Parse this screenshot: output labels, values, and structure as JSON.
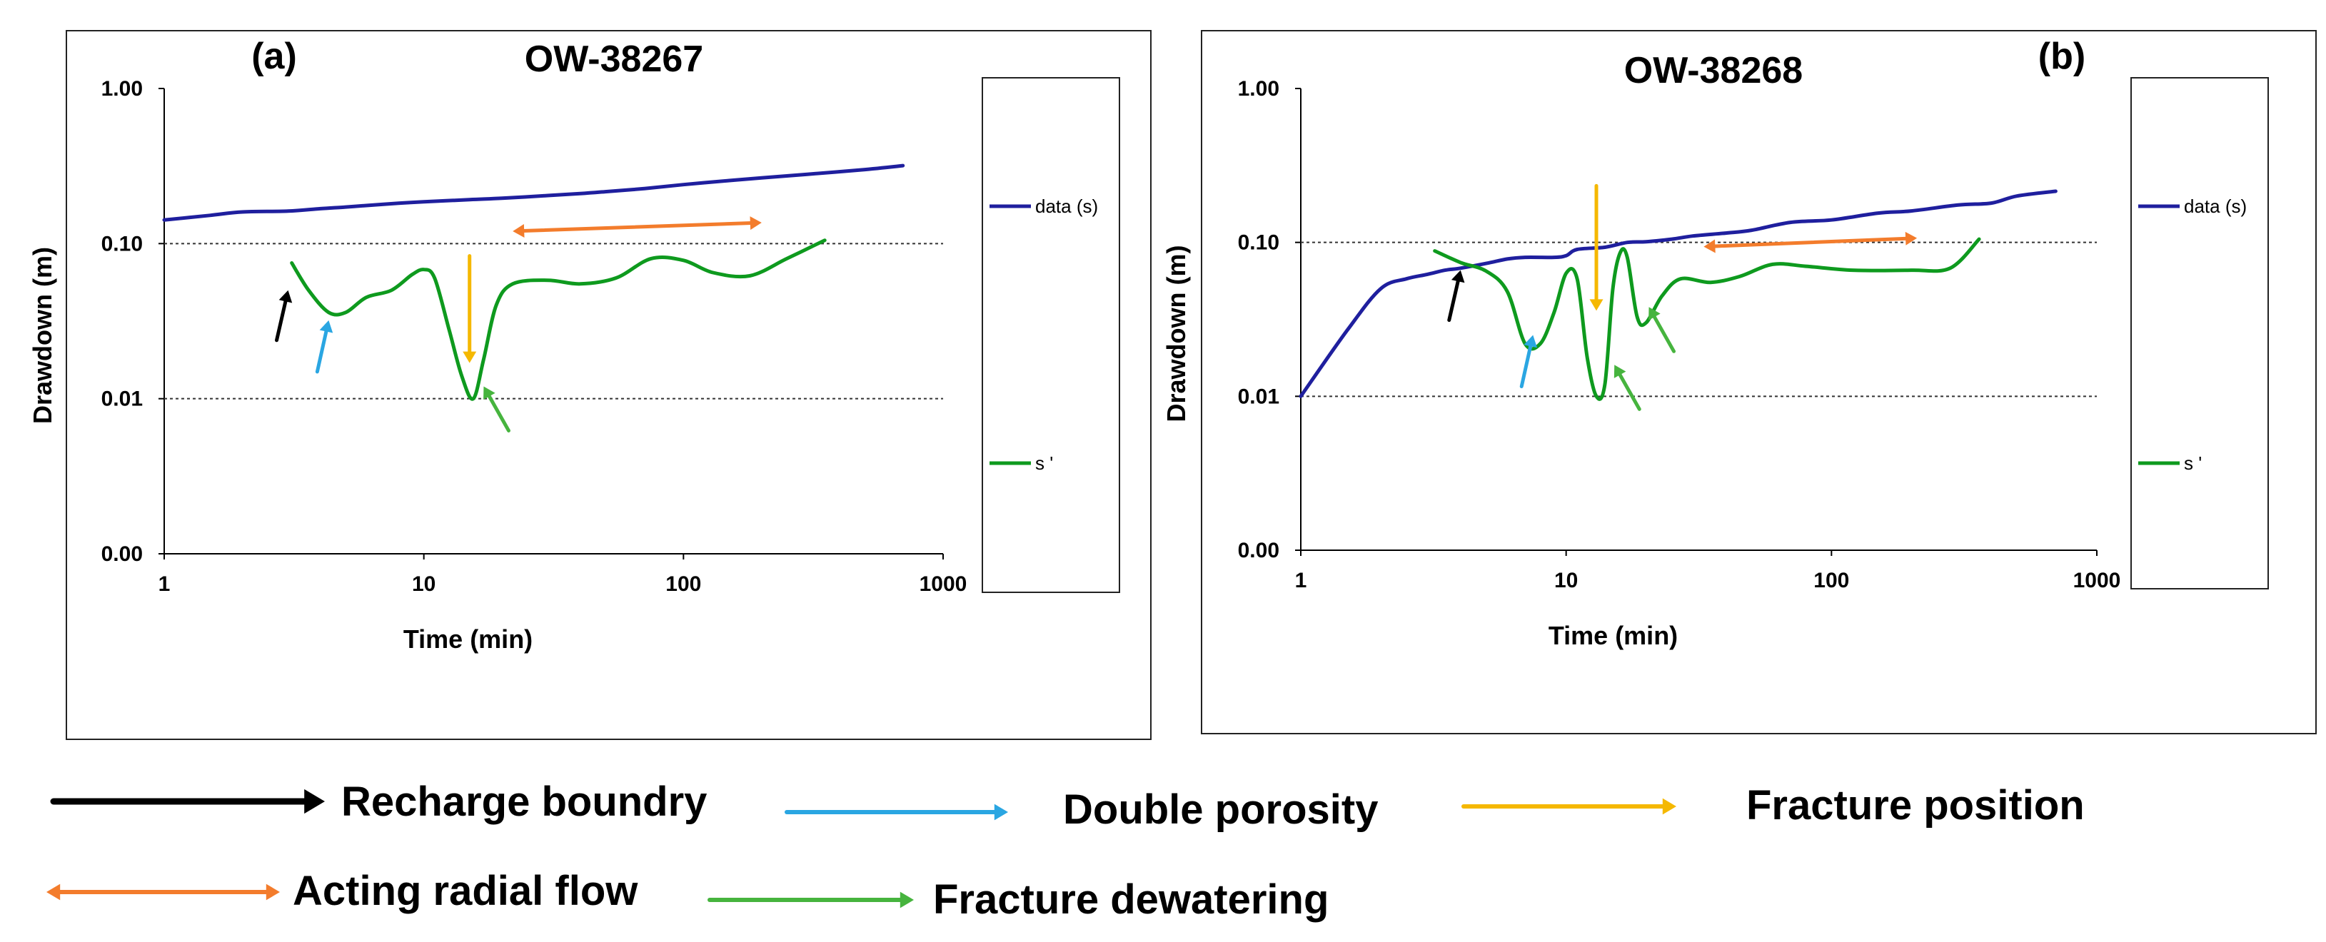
{
  "colors": {
    "data_s": "#1f1f9e",
    "s_prime": "#0e9a1e",
    "recharge": "#000000",
    "double_porosity": "#2aa6e2",
    "fracture_position": "#f5b800",
    "radial_flow": "#f37c2c",
    "fracture_dewatering": "#46b43e"
  },
  "chart_data": [
    {
      "type": "line",
      "panel": "(a)",
      "title": "OW-38267",
      "xlabel": "Time (min)",
      "ylabel": "Drawdown (m)",
      "xscale": "log",
      "xlim": [
        1,
        1000
      ],
      "y_ticks": [
        "1.00",
        "0.10",
        "0.01",
        "0.00"
      ],
      "x_ticks": [
        "1",
        "10",
        "100",
        "1000"
      ],
      "gridlines_at": [
        "0.10",
        "0.01"
      ],
      "legend_position": "right",
      "series": [
        {
          "name": "data (s)",
          "color_key": "data_s",
          "points": [
            [
              1,
              0.142
            ],
            [
              1.5,
              0.152
            ],
            [
              2,
              0.16
            ],
            [
              3,
              0.162
            ],
            [
              4,
              0.168
            ],
            [
              5,
              0.172
            ],
            [
              6,
              0.176
            ],
            [
              8,
              0.182
            ],
            [
              10,
              0.186
            ],
            [
              15,
              0.192
            ],
            [
              20,
              0.196
            ],
            [
              30,
              0.204
            ],
            [
              40,
              0.21
            ],
            [
              50,
              0.216
            ],
            [
              70,
              0.226
            ],
            [
              100,
              0.24
            ],
            [
              150,
              0.255
            ],
            [
              200,
              0.265
            ],
            [
              300,
              0.28
            ],
            [
              500,
              0.3
            ],
            [
              700,
              0.318
            ]
          ]
        },
        {
          "name": "s '",
          "color_key": "s_prime",
          "points": [
            [
              3.1,
              0.075
            ],
            [
              3.6,
              0.05
            ],
            [
              4.3,
              0.036
            ],
            [
              5,
              0.036
            ],
            [
              6,
              0.045
            ],
            [
              7.5,
              0.05
            ],
            [
              9,
              0.063
            ],
            [
              10,
              0.068
            ],
            [
              11,
              0.06
            ],
            [
              12.5,
              0.028
            ],
            [
              14,
              0.014
            ],
            [
              15.5,
              0.01
            ],
            [
              17,
              0.018
            ],
            [
              19,
              0.04
            ],
            [
              22,
              0.055
            ],
            [
              30,
              0.058
            ],
            [
              40,
              0.055
            ],
            [
              55,
              0.06
            ],
            [
              75,
              0.08
            ],
            [
              100,
              0.078
            ],
            [
              130,
              0.065
            ],
            [
              180,
              0.062
            ],
            [
              250,
              0.08
            ],
            [
              350,
              0.105
            ]
          ]
        }
      ],
      "annotations": [
        {
          "kind": "recharge",
          "at_time": 3.0,
          "at_drawdown": 0.05
        },
        {
          "kind": "double_porosity",
          "at_time": 4.3,
          "at_drawdown": 0.032
        },
        {
          "kind": "fracture_position",
          "at_time": 15.0,
          "at_drawdown": 0.017
        },
        {
          "kind": "fracture_dewatering",
          "at_time": 17.0,
          "at_drawdown": 0.012
        },
        {
          "kind": "radial_flow",
          "from_time": 22,
          "to_time": 200,
          "at_drawdown": 0.128
        }
      ]
    },
    {
      "type": "line",
      "panel": "(b)",
      "title": "OW-38268",
      "xlabel": "Time (min)",
      "ylabel": "Drawdown (m)",
      "xscale": "log",
      "xlim": [
        1,
        1000
      ],
      "y_ticks": [
        "1.00",
        "0.10",
        "0.01",
        "0.00"
      ],
      "x_ticks": [
        "1",
        "10",
        "100",
        "1000"
      ],
      "gridlines_at": [
        "0.10",
        "0.01"
      ],
      "legend_position": "right",
      "series": [
        {
          "name": "data (s)",
          "color_key": "data_s",
          "points": [
            [
              1,
              0.01
            ],
            [
              1.5,
              0.027
            ],
            [
              2,
              0.05
            ],
            [
              2.5,
              0.058
            ],
            [
              3,
              0.062
            ],
            [
              3.5,
              0.066
            ],
            [
              4,
              0.068
            ],
            [
              5,
              0.073
            ],
            [
              6,
              0.078
            ],
            [
              7,
              0.08
            ],
            [
              9,
              0.08
            ],
            [
              10,
              0.082
            ],
            [
              11,
              0.09
            ],
            [
              14,
              0.093
            ],
            [
              17,
              0.1
            ],
            [
              20,
              0.101
            ],
            [
              25,
              0.105
            ],
            [
              30,
              0.11
            ],
            [
              40,
              0.115
            ],
            [
              50,
              0.12
            ],
            [
              70,
              0.135
            ],
            [
              100,
              0.14
            ],
            [
              150,
              0.155
            ],
            [
              200,
              0.16
            ],
            [
              300,
              0.175
            ],
            [
              400,
              0.18
            ],
            [
              500,
              0.2
            ],
            [
              700,
              0.215
            ]
          ]
        },
        {
          "name": "s '",
          "color_key": "s_prime",
          "points": [
            [
              3.2,
              0.088
            ],
            [
              4,
              0.074
            ],
            [
              5,
              0.065
            ],
            [
              6,
              0.048
            ],
            [
              7,
              0.022
            ],
            [
              8,
              0.022
            ],
            [
              9,
              0.035
            ],
            [
              10,
              0.063
            ],
            [
              11,
              0.058
            ],
            [
              12,
              0.018
            ],
            [
              13,
              0.01
            ],
            [
              14,
              0.012
            ],
            [
              15,
              0.05
            ],
            [
              16,
              0.086
            ],
            [
              17,
              0.08
            ],
            [
              18.5,
              0.033
            ],
            [
              20,
              0.03
            ],
            [
              23,
              0.045
            ],
            [
              27,
              0.058
            ],
            [
              35,
              0.055
            ],
            [
              45,
              0.06
            ],
            [
              60,
              0.072
            ],
            [
              80,
              0.07
            ],
            [
              120,
              0.066
            ],
            [
              200,
              0.066
            ],
            [
              280,
              0.068
            ],
            [
              360,
              0.105
            ]
          ]
        }
      ],
      "annotations": [
        {
          "kind": "recharge",
          "at_time": 4.0,
          "at_drawdown": 0.066
        },
        {
          "kind": "double_porosity",
          "at_time": 7.5,
          "at_drawdown": 0.025
        },
        {
          "kind": "fracture_position",
          "at_time": 13.0,
          "at_drawdown": 0.036
        },
        {
          "kind": "fracture_dewatering",
          "at_time": 15.2,
          "at_drawdown": 0.016
        },
        {
          "kind": "fracture_dewatering",
          "at_time": 20.5,
          "at_drawdown": 0.038
        },
        {
          "kind": "radial_flow",
          "from_time": 33,
          "to_time": 210,
          "at_drawdown": 0.1
        }
      ]
    }
  ],
  "legend_key": [
    {
      "kind": "recharge",
      "label": "Recharge boundry"
    },
    {
      "kind": "double_porosity",
      "label": "Double porosity"
    },
    {
      "kind": "fracture_position",
      "label": "Fracture position"
    },
    {
      "kind": "radial_flow",
      "label": "Acting radial flow"
    },
    {
      "kind": "fracture_dewatering",
      "label": "Fracture dewatering"
    }
  ]
}
